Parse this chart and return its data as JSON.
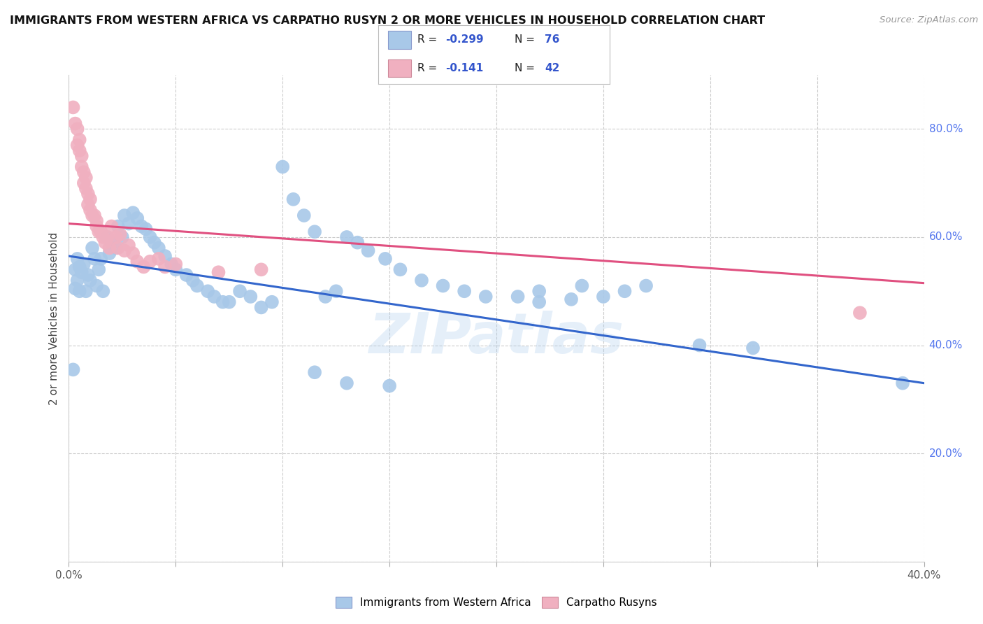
{
  "title": "IMMIGRANTS FROM WESTERN AFRICA VS CARPATHO RUSYN 2 OR MORE VEHICLES IN HOUSEHOLD CORRELATION CHART",
  "source": "Source: ZipAtlas.com",
  "ylabel": "2 or more Vehicles in Household",
  "x_min": 0.0,
  "x_max": 0.4,
  "y_min": 0.0,
  "y_max": 0.9,
  "color_blue": "#A8C8E8",
  "color_blue_line": "#3366CC",
  "color_pink": "#F0B0C0",
  "color_pink_line": "#E05080",
  "color_r_label": "#3355CC",
  "watermark": "ZIPatlas",
  "legend_label1": "Immigrants from Western Africa",
  "legend_label2": "Carpatho Rusyns",
  "legend_r1": "-0.299",
  "legend_n1": "76",
  "legend_r2": "-0.141",
  "legend_n2": "42",
  "blue_line_x": [
    0.0,
    0.4
  ],
  "blue_line_y": [
    0.565,
    0.33
  ],
  "pink_line_x": [
    0.0,
    0.4
  ],
  "pink_line_y": [
    0.625,
    0.515
  ],
  "blue_x": [
    0.002,
    0.003,
    0.003,
    0.004,
    0.004,
    0.005,
    0.005,
    0.006,
    0.007,
    0.008,
    0.009,
    0.01,
    0.011,
    0.012,
    0.013,
    0.014,
    0.015,
    0.016,
    0.018,
    0.019,
    0.02,
    0.022,
    0.023,
    0.025,
    0.026,
    0.028,
    0.03,
    0.032,
    0.034,
    0.036,
    0.038,
    0.04,
    0.042,
    0.045,
    0.048,
    0.05,
    0.055,
    0.058,
    0.06,
    0.065,
    0.068,
    0.072,
    0.075,
    0.08,
    0.085,
    0.09,
    0.095,
    0.1,
    0.105,
    0.11,
    0.115,
    0.12,
    0.125,
    0.13,
    0.135,
    0.14,
    0.148,
    0.155,
    0.165,
    0.175,
    0.185,
    0.195,
    0.21,
    0.22,
    0.235,
    0.25,
    0.27,
    0.295,
    0.32,
    0.22,
    0.24,
    0.26,
    0.115,
    0.13,
    0.15,
    0.39
  ],
  "blue_y": [
    0.355,
    0.505,
    0.54,
    0.52,
    0.56,
    0.5,
    0.545,
    0.535,
    0.55,
    0.5,
    0.53,
    0.52,
    0.58,
    0.56,
    0.51,
    0.54,
    0.56,
    0.5,
    0.6,
    0.57,
    0.59,
    0.58,
    0.62,
    0.6,
    0.64,
    0.625,
    0.645,
    0.635,
    0.62,
    0.615,
    0.6,
    0.59,
    0.58,
    0.565,
    0.55,
    0.54,
    0.53,
    0.52,
    0.51,
    0.5,
    0.49,
    0.48,
    0.48,
    0.5,
    0.49,
    0.47,
    0.48,
    0.73,
    0.67,
    0.64,
    0.61,
    0.49,
    0.5,
    0.6,
    0.59,
    0.575,
    0.56,
    0.54,
    0.52,
    0.51,
    0.5,
    0.49,
    0.49,
    0.48,
    0.485,
    0.49,
    0.51,
    0.4,
    0.395,
    0.5,
    0.51,
    0.5,
    0.35,
    0.33,
    0.325,
    0.33
  ],
  "pink_x": [
    0.002,
    0.003,
    0.004,
    0.004,
    0.005,
    0.005,
    0.006,
    0.006,
    0.007,
    0.007,
    0.008,
    0.008,
    0.009,
    0.009,
    0.01,
    0.01,
    0.011,
    0.012,
    0.013,
    0.013,
    0.014,
    0.015,
    0.016,
    0.017,
    0.018,
    0.019,
    0.02,
    0.022,
    0.023,
    0.024,
    0.026,
    0.028,
    0.03,
    0.032,
    0.035,
    0.038,
    0.042,
    0.045,
    0.05,
    0.07,
    0.09,
    0.37
  ],
  "pink_y": [
    0.84,
    0.81,
    0.8,
    0.77,
    0.78,
    0.76,
    0.75,
    0.73,
    0.72,
    0.7,
    0.71,
    0.69,
    0.68,
    0.66,
    0.67,
    0.65,
    0.64,
    0.64,
    0.63,
    0.62,
    0.61,
    0.61,
    0.6,
    0.59,
    0.6,
    0.58,
    0.62,
    0.6,
    0.58,
    0.605,
    0.575,
    0.585,
    0.57,
    0.555,
    0.545,
    0.555,
    0.56,
    0.545,
    0.55,
    0.535,
    0.54,
    0.46
  ],
  "grid_color": "#CCCCCC",
  "background_color": "#FFFFFF"
}
